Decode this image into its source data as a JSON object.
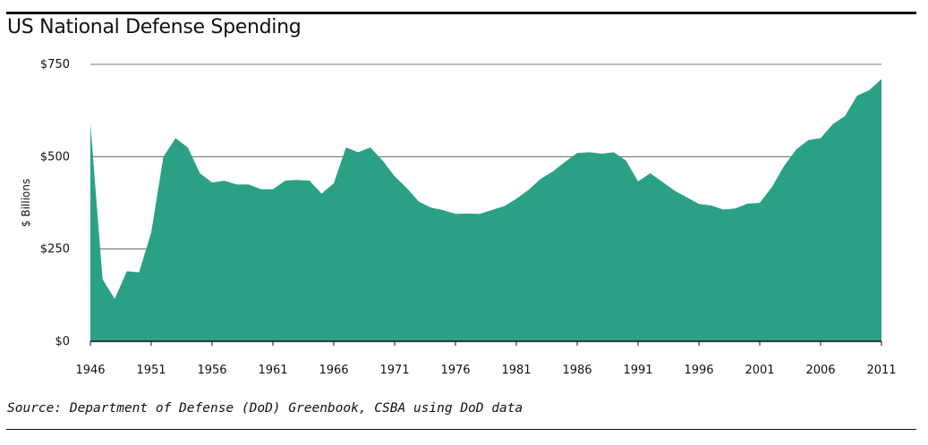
{
  "title": "US National Defense Spending",
  "source": "Source: Department of Defense (DoD) Greenbook, CSBA using DoD data",
  "chart_data": {
    "type": "area",
    "title": "US National Defense Spending",
    "xlabel": "",
    "ylabel": "$ Billions",
    "xlim": [
      1946,
      2011
    ],
    "ylim": [
      0,
      750
    ],
    "yticks": [
      0,
      250,
      500,
      750
    ],
    "ytick_labels": [
      "$0",
      "$250",
      "$500",
      "$750"
    ],
    "xticks": [
      1946,
      1951,
      1956,
      1961,
      1966,
      1971,
      1976,
      1981,
      1986,
      1991,
      1996,
      2001,
      2006,
      2011
    ],
    "xtick_labels": [
      "1946",
      "1951",
      "1956",
      "1961",
      "1966",
      "1971",
      "1976",
      "1981",
      "1986",
      "1991",
      "1996",
      "2001",
      "2006",
      "2011"
    ],
    "grid": "horizontal",
    "fill_color": "#2aa184",
    "series": [
      {
        "x": [
          1946,
          1947,
          1948,
          1949,
          1950,
          1951,
          1952,
          1953,
          1954,
          1955,
          1956,
          1957,
          1958,
          1959,
          1960,
          1961,
          1962,
          1963,
          1964,
          1965,
          1966,
          1967,
          1968,
          1969,
          1970,
          1971,
          1972,
          1973,
          1974,
          1975,
          1976,
          1977,
          1978,
          1979,
          1980,
          1981,
          1982,
          1983,
          1984,
          1985,
          1986,
          1987,
          1988,
          1989,
          1990,
          1991,
          1992,
          1993,
          1994,
          1995,
          1996,
          1997,
          1998,
          1999,
          2000,
          2001,
          2002,
          2003,
          2004,
          2005,
          2006,
          2007,
          2008,
          2009,
          2010,
          2011
        ],
        "values": [
          590,
          168,
          115,
          190,
          187,
          295,
          500,
          550,
          525,
          455,
          430,
          435,
          425,
          425,
          412,
          412,
          435,
          437,
          435,
          400,
          428,
          525,
          512,
          525,
          490,
          447,
          415,
          378,
          362,
          355,
          345,
          346,
          345,
          356,
          366,
          386,
          410,
          440,
          460,
          486,
          510,
          512,
          508,
          512,
          490,
          433,
          455,
          432,
          408,
          390,
          372,
          368,
          357,
          360,
          373,
          375,
          418,
          475,
          520,
          545,
          550,
          588,
          610,
          665,
          680,
          710
        ]
      }
    ]
  }
}
